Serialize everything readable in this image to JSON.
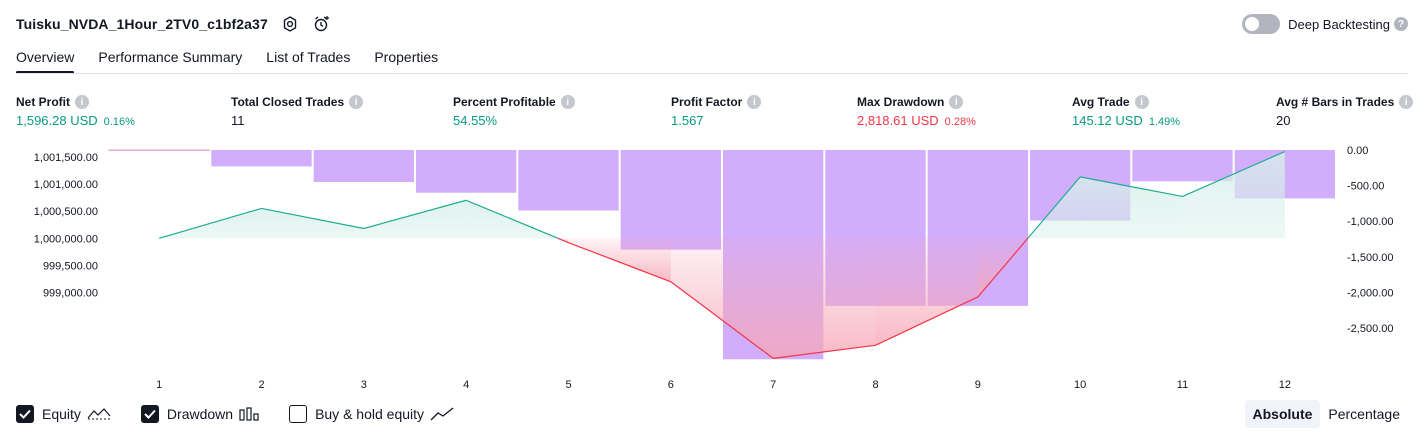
{
  "header": {
    "title": "Tuisku_NVDA_1Hour_2TV0_c1bf2a37",
    "deep_backtesting_label": "Deep Backtesting",
    "deep_backtesting_enabled": false
  },
  "tabs": [
    {
      "label": "Overview",
      "active": true
    },
    {
      "label": "Performance Summary",
      "active": false
    },
    {
      "label": "List of Trades",
      "active": false
    },
    {
      "label": "Properties",
      "active": false
    }
  ],
  "metrics": [
    {
      "label": "Net Profit",
      "value": "1,596.28 USD",
      "pct": "0.16%",
      "tone": "pos"
    },
    {
      "label": "Total Closed Trades",
      "value": "11",
      "pct": "",
      "tone": "neu"
    },
    {
      "label": "Percent Profitable",
      "value": "54.55%",
      "pct": "",
      "tone": "pos"
    },
    {
      "label": "Profit Factor",
      "value": "1.567",
      "pct": "",
      "tone": "pos"
    },
    {
      "label": "Max Drawdown",
      "value": "2,818.61 USD",
      "pct": "0.28%",
      "tone": "neg"
    },
    {
      "label": "Avg Trade",
      "value": "145.12 USD",
      "pct": "1.49%",
      "tone": "pos"
    },
    {
      "label": "Avg # Bars in Trades",
      "value": "20",
      "pct": "",
      "tone": "neu"
    }
  ],
  "legend": {
    "equity": {
      "label": "Equity",
      "checked": true
    },
    "drawdown": {
      "label": "Drawdown",
      "checked": true
    },
    "buy_hold": {
      "label": "Buy & hold equity",
      "checked": false
    }
  },
  "mode": {
    "absolute_label": "Absolute",
    "percentage_label": "Percentage",
    "selected": "Absolute"
  },
  "colors": {
    "equity_line": "#22ab94",
    "equity_fill": "#d7f0ea",
    "loss_line": "#f23645",
    "loss_fill": "#f7a8b8",
    "drawdown_bar": "#d1adfc",
    "text": "#131722"
  },
  "chart_data": {
    "type": "line",
    "x": [
      1,
      2,
      3,
      4,
      5,
      6,
      7,
      8,
      9,
      10,
      11,
      12
    ],
    "baseline": 1000000,
    "series": [
      {
        "values": [
          1000000,
          1000550,
          1000180,
          1000700,
          999920,
          999200,
          997790,
          998030,
          998920,
          1001130,
          1000770,
          1001596.28
        ]
      }
    ],
    "drawdown": {
      "values": [
        0,
        -230,
        -450,
        -600,
        -850,
        -1400,
        -2940,
        -2190,
        -2190,
        -990,
        -440,
        -680
      ]
    },
    "left_axis": {
      "ticks": [
        "1,001,500.00",
        "1,001,000.00",
        "1,000,500.00",
        "1,000,000.00",
        "999,500.00",
        "999,000.00"
      ],
      "ylim": [
        997760,
        1001625
      ]
    },
    "right_axis": {
      "ticks": [
        "0.00",
        "-500.00",
        "-1,000.00",
        "-1,500.00",
        "-2,000.00",
        "-2,500.00"
      ],
      "ylim": [
        -2950,
        0
      ]
    },
    "grid": false
  }
}
